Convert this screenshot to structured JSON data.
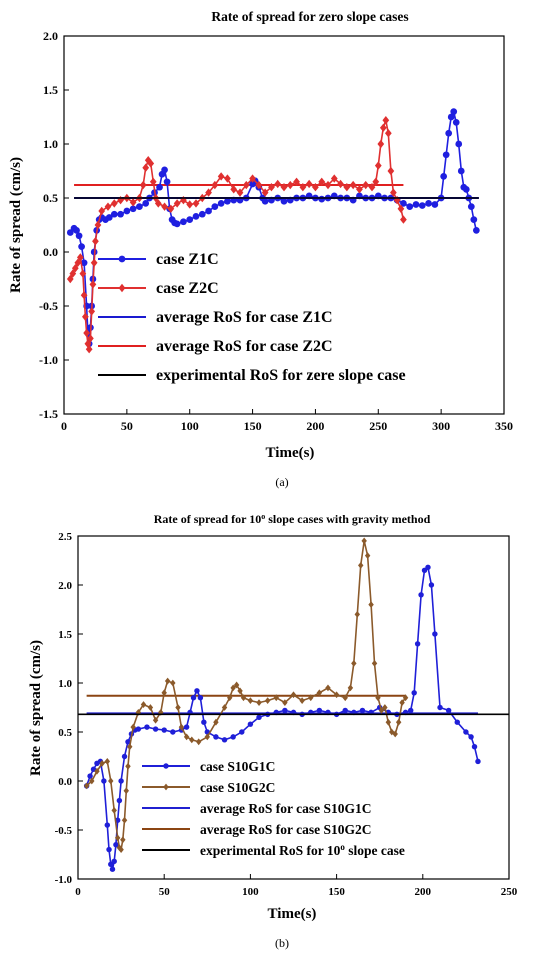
{
  "chart_data": [
    {
      "type": "line",
      "caption": "(a)",
      "title": "Rate of spread for zero slope cases",
      "xlabel": "Time(s)",
      "ylabel": "Rate of spread (cm/s)",
      "xlim": [
        0,
        350
      ],
      "ylim": [
        -1.5,
        2.0
      ],
      "xticks": [
        0,
        50,
        100,
        150,
        200,
        250,
        300,
        350
      ],
      "yticks": [
        -1.5,
        -1.0,
        -0.5,
        0.0,
        0.5,
        1.0,
        1.5,
        2.0
      ],
      "ytick_labels": [
        "-1.5",
        "-1.0",
        "-0.5",
        "0.0",
        "0.5",
        "1.0",
        "1.5",
        "2.0"
      ],
      "legend_position": "bottom-left",
      "series": [
        {
          "name": "case Z1C",
          "color": "#1f1fe0",
          "marker": "circle",
          "x": [
            5,
            8,
            10,
            12,
            14,
            16,
            18,
            19,
            20,
            21,
            22,
            23,
            24,
            26,
            28,
            30,
            33,
            36,
            40,
            45,
            50,
            55,
            60,
            65,
            68,
            72,
            76,
            78,
            80,
            82,
            84,
            86,
            88,
            90,
            95,
            100,
            105,
            110,
            115,
            120,
            125,
            130,
            135,
            140,
            145,
            150,
            152,
            155,
            158,
            160,
            165,
            170,
            175,
            180,
            185,
            190,
            195,
            200,
            205,
            210,
            215,
            220,
            225,
            230,
            235,
            240,
            245,
            250,
            255,
            260,
            265,
            270,
            275,
            280,
            285,
            290,
            295,
            300,
            302,
            304,
            306,
            308,
            310,
            312,
            314,
            316,
            318,
            320,
            322,
            324,
            326,
            328
          ],
          "y": [
            0.18,
            0.22,
            0.2,
            0.15,
            0.05,
            -0.1,
            -0.5,
            -0.75,
            -0.85,
            -0.7,
            -0.5,
            -0.25,
            0.0,
            0.2,
            0.3,
            0.32,
            0.3,
            0.32,
            0.35,
            0.35,
            0.38,
            0.4,
            0.42,
            0.45,
            0.5,
            0.55,
            0.6,
            0.72,
            0.76,
            0.65,
            0.4,
            0.3,
            0.27,
            0.26,
            0.28,
            0.3,
            0.33,
            0.35,
            0.38,
            0.42,
            0.45,
            0.47,
            0.48,
            0.48,
            0.5,
            0.63,
            0.66,
            0.6,
            0.5,
            0.47,
            0.48,
            0.5,
            0.47,
            0.48,
            0.5,
            0.5,
            0.52,
            0.5,
            0.49,
            0.5,
            0.52,
            0.5,
            0.5,
            0.48,
            0.52,
            0.5,
            0.5,
            0.52,
            0.5,
            0.5,
            0.48,
            0.45,
            0.42,
            0.44,
            0.43,
            0.45,
            0.44,
            0.5,
            0.7,
            0.9,
            1.1,
            1.25,
            1.3,
            1.2,
            1.0,
            0.75,
            0.6,
            0.58,
            0.5,
            0.42,
            0.3,
            0.2
          ]
        },
        {
          "name": "case Z2C",
          "color": "#e03030",
          "marker": "diamond",
          "x": [
            5,
            7,
            9,
            11,
            13,
            15,
            16,
            17,
            18,
            19,
            20,
            21,
            22,
            23,
            24,
            25,
            27,
            30,
            35,
            40,
            45,
            50,
            55,
            60,
            63,
            65,
            67,
            69,
            71,
            73,
            75,
            80,
            85,
            90,
            95,
            100,
            105,
            110,
            115,
            120,
            125,
            130,
            135,
            140,
            145,
            150,
            155,
            160,
            165,
            170,
            175,
            180,
            185,
            190,
            195,
            200,
            205,
            210,
            215,
            220,
            225,
            230,
            235,
            240,
            245,
            248,
            250,
            252,
            254,
            256,
            258,
            260,
            262,
            265,
            268,
            270
          ],
          "y": [
            -0.25,
            -0.2,
            -0.15,
            -0.1,
            -0.05,
            -0.2,
            -0.4,
            -0.6,
            -0.75,
            -0.85,
            -0.9,
            -0.8,
            -0.55,
            -0.3,
            -0.1,
            0.1,
            0.25,
            0.38,
            0.42,
            0.45,
            0.48,
            0.5,
            0.46,
            0.5,
            0.62,
            0.78,
            0.85,
            0.82,
            0.65,
            0.5,
            0.45,
            0.42,
            0.4,
            0.45,
            0.48,
            0.44,
            0.45,
            0.5,
            0.55,
            0.62,
            0.7,
            0.68,
            0.58,
            0.55,
            0.62,
            0.68,
            0.62,
            0.55,
            0.6,
            0.63,
            0.6,
            0.62,
            0.65,
            0.6,
            0.63,
            0.6,
            0.65,
            0.62,
            0.68,
            0.63,
            0.6,
            0.62,
            0.58,
            0.62,
            0.6,
            0.65,
            0.8,
            1.0,
            1.15,
            1.22,
            1.1,
            0.75,
            0.55,
            0.48,
            0.4,
            0.3
          ]
        },
        {
          "name": "average RoS for case Z1C",
          "color": "#1a1ad0",
          "y_const": 0.5,
          "x_range": [
            8,
            330
          ]
        },
        {
          "name": "average RoS for case Z2C",
          "color": "#e02020",
          "y_const": 0.62,
          "x_range": [
            8,
            270
          ]
        },
        {
          "name": "experimental RoS for zere slope case",
          "color": "#000000",
          "y_const": 0.5,
          "x_range": [
            8,
            330
          ]
        }
      ]
    },
    {
      "type": "line",
      "caption": "(b)",
      "title_pre": "Rate of spread for 10",
      "title_sup": "o",
      "title_post": " slope cases with gravity method",
      "xlabel": "Time(s)",
      "ylabel": "Rate of spread (cm/s)",
      "xlim": [
        0,
        250
      ],
      "ylim": [
        -1.0,
        2.5
      ],
      "xticks": [
        0,
        50,
        100,
        150,
        200,
        250
      ],
      "yticks": [
        -1.0,
        -0.5,
        0.0,
        0.5,
        1.0,
        1.5,
        2.0,
        2.5
      ],
      "ytick_labels": [
        "-1.0",
        "-0.5",
        "0.0",
        "0.5",
        "1.0",
        "1.5",
        "2.0",
        "2.5"
      ],
      "legend_position": "bottom-left",
      "series": [
        {
          "name": "case S10G1C",
          "color": "#1f1fd8",
          "marker": "circle",
          "x": [
            5,
            7,
            9,
            11,
            13,
            15,
            17,
            18,
            19,
            20,
            21,
            22,
            23,
            24,
            25,
            27,
            29,
            31,
            33,
            35,
            40,
            45,
            50,
            55,
            60,
            63,
            65,
            67,
            69,
            71,
            73,
            75,
            80,
            85,
            90,
            95,
            100,
            105,
            110,
            115,
            120,
            125,
            130,
            135,
            140,
            145,
            150,
            155,
            160,
            165,
            170,
            175,
            180,
            185,
            190,
            193,
            195,
            197,
            199,
            201,
            203,
            205,
            207,
            210,
            215,
            220,
            225,
            228,
            230,
            232
          ],
          "y": [
            -0.05,
            0.05,
            0.12,
            0.18,
            0.2,
            0.0,
            -0.45,
            -0.7,
            -0.85,
            -0.9,
            -0.82,
            -0.65,
            -0.4,
            -0.2,
            0.0,
            0.25,
            0.4,
            0.48,
            0.52,
            0.53,
            0.55,
            0.53,
            0.52,
            0.5,
            0.52,
            0.55,
            0.7,
            0.85,
            0.92,
            0.85,
            0.6,
            0.5,
            0.45,
            0.42,
            0.45,
            0.5,
            0.58,
            0.65,
            0.68,
            0.7,
            0.72,
            0.7,
            0.68,
            0.7,
            0.72,
            0.7,
            0.68,
            0.72,
            0.7,
            0.72,
            0.7,
            0.75,
            0.7,
            0.68,
            0.7,
            0.72,
            0.9,
            1.4,
            1.9,
            2.15,
            2.18,
            2.0,
            1.5,
            0.75,
            0.72,
            0.6,
            0.5,
            0.45,
            0.35,
            0.2
          ]
        },
        {
          "name": "case S10G2C",
          "color": "#8b5a2b",
          "marker": "diamond",
          "x": [
            5,
            8,
            11,
            14,
            17,
            19,
            21,
            23,
            24,
            25,
            26,
            27,
            28,
            29,
            30,
            32,
            35,
            38,
            42,
            45,
            48,
            50,
            52,
            55,
            58,
            60,
            63,
            66,
            70,
            75,
            80,
            85,
            88,
            90,
            92,
            94,
            96,
            100,
            105,
            110,
            115,
            120,
            125,
            130,
            135,
            140,
            145,
            150,
            155,
            158,
            160,
            162,
            164,
            166,
            168,
            170,
            172,
            174,
            176,
            178,
            180,
            182,
            184,
            186,
            188,
            190
          ],
          "y": [
            -0.05,
            0.0,
            0.1,
            0.18,
            0.2,
            0.0,
            -0.3,
            -0.58,
            -0.68,
            -0.7,
            -0.6,
            -0.4,
            -0.1,
            0.15,
            0.35,
            0.55,
            0.7,
            0.78,
            0.75,
            0.62,
            0.7,
            0.9,
            1.02,
            1.0,
            0.75,
            0.55,
            0.45,
            0.42,
            0.4,
            0.45,
            0.6,
            0.75,
            0.85,
            0.95,
            0.98,
            0.92,
            0.85,
            0.82,
            0.8,
            0.82,
            0.85,
            0.8,
            0.88,
            0.82,
            0.85,
            0.9,
            0.95,
            0.88,
            0.85,
            0.95,
            1.2,
            1.7,
            2.2,
            2.45,
            2.3,
            1.8,
            1.2,
            0.85,
            0.72,
            0.75,
            0.6,
            0.5,
            0.48,
            0.6,
            0.8,
            0.85
          ]
        },
        {
          "name": "average RoS for case S10G1C",
          "color": "#2020d0",
          "y_const": 0.69,
          "x_range": [
            5,
            232
          ]
        },
        {
          "name": "average RoS for case S10G2C",
          "color": "#8b4513",
          "y_const": 0.87,
          "x_range": [
            5,
            190
          ]
        },
        {
          "name_pre": "experimental RoS for 10",
          "name_sup": "o",
          "name_post": " slope case",
          "color": "#000000",
          "y_const": 0.68,
          "x_range": [
            0,
            250
          ]
        }
      ]
    }
  ]
}
